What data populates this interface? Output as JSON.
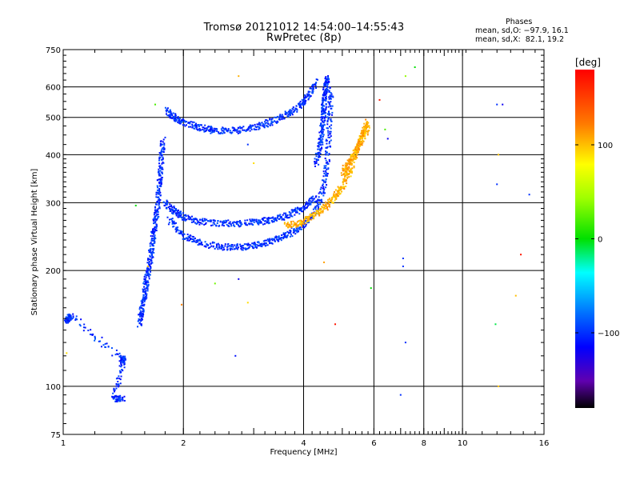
{
  "chart_data": {
    "type": "scatter",
    "title": "Tromsø 20121012 14:54:00–14:55:43",
    "subtitle": "RwPretec (8p)",
    "xlabel": "Frequency [MHz]",
    "ylabel": "Stationary phase Virtual Height [km]",
    "x_scale": "log",
    "y_scale": "log",
    "xlim": [
      1,
      16
    ],
    "ylim": [
      75,
      750
    ],
    "x_ticks": [
      "1",
      "2",
      "4",
      "6",
      "8",
      "10",
      "16"
    ],
    "x_tick_values": [
      1,
      2,
      4,
      6,
      8,
      10,
      16
    ],
    "y_ticks": [
      "75",
      "100",
      "200",
      "300",
      "400",
      "500",
      "600",
      "750"
    ],
    "y_tick_values": [
      75,
      100,
      200,
      300,
      400,
      500,
      600,
      750
    ],
    "grid": true,
    "phases_title": "Phases",
    "phase_o_text": "mean, sd,O: −97.9, 16.1",
    "phase_x_text": "mean, sd,X:  82.1, 19.2",
    "colorbar": {
      "label": "[deg]",
      "min": -180,
      "max": 180,
      "tick_labels": [
        "100",
        "0",
        "−100"
      ],
      "tick_values": [
        100,
        0,
        -100
      ]
    },
    "traces": [
      {
        "phase": -100,
        "points": [
          [
            1.55,
            145
          ],
          [
            1.58,
            160
          ],
          [
            1.6,
            175
          ],
          [
            1.62,
            190
          ],
          [
            1.65,
            210
          ],
          [
            1.67,
            235
          ],
          [
            1.7,
            260
          ],
          [
            1.72,
            290
          ],
          [
            1.74,
            330
          ],
          [
            1.76,
            380
          ],
          [
            1.78,
            440
          ]
        ]
      },
      {
        "phase": -100,
        "points": [
          [
            1.82,
            520
          ],
          [
            1.9,
            500
          ],
          [
            2.0,
            485
          ],
          [
            2.2,
            470
          ],
          [
            2.4,
            462
          ],
          [
            2.7,
            462
          ],
          [
            3.0,
            470
          ],
          [
            3.3,
            485
          ],
          [
            3.6,
            505
          ],
          [
            3.9,
            535
          ],
          [
            4.1,
            570
          ],
          [
            4.3,
            620
          ]
        ]
      },
      {
        "phase": -100,
        "points": [
          [
            1.8,
            300
          ],
          [
            1.9,
            285
          ],
          [
            2.0,
            275
          ],
          [
            2.2,
            268
          ],
          [
            2.5,
            265
          ],
          [
            2.8,
            265
          ],
          [
            3.1,
            268
          ],
          [
            3.4,
            272
          ],
          [
            3.7,
            280
          ],
          [
            4.0,
            290
          ],
          [
            4.3,
            310
          ]
        ]
      },
      {
        "phase": -100,
        "points": [
          [
            1.85,
            270
          ],
          [
            2.0,
            245
          ],
          [
            2.2,
            236
          ],
          [
            2.5,
            230
          ],
          [
            2.8,
            230
          ],
          [
            3.1,
            233
          ],
          [
            3.4,
            240
          ],
          [
            3.7,
            250
          ],
          [
            4.0,
            262
          ],
          [
            4.3,
            285
          ],
          [
            4.5,
            330
          ],
          [
            4.6,
            400
          ],
          [
            4.65,
            500
          ],
          [
            4.7,
            600
          ]
        ]
      },
      {
        "phase": -100,
        "points": [
          [
            4.3,
            380
          ],
          [
            4.4,
            420
          ],
          [
            4.45,
            470
          ],
          [
            4.5,
            520
          ],
          [
            4.5,
            560
          ],
          [
            4.55,
            610
          ],
          [
            4.6,
            630
          ]
        ]
      },
      {
        "phase": 105,
        "points": [
          [
            3.6,
            262
          ],
          [
            3.9,
            265
          ],
          [
            4.2,
            275
          ],
          [
            4.5,
            290
          ],
          [
            4.8,
            310
          ],
          [
            5.0,
            330
          ],
          [
            5.2,
            360
          ],
          [
            5.4,
            400
          ],
          [
            5.6,
            450
          ],
          [
            5.8,
            490
          ]
        ]
      },
      {
        "phase": 105,
        "points": [
          [
            5.0,
            360
          ],
          [
            5.2,
            380
          ],
          [
            5.4,
            410
          ],
          [
            5.6,
            440
          ],
          [
            5.8,
            470
          ]
        ]
      },
      {
        "phase": -100,
        "points": [
          [
            1.02,
            148
          ],
          [
            1.03,
            150
          ],
          [
            1.05,
            152
          ],
          [
            1.4,
            118
          ],
          [
            1.42,
            117
          ],
          [
            1.34,
            93
          ],
          [
            1.42,
            93
          ]
        ]
      }
    ],
    "scattered_points": [
      {
        "x": 2.75,
        "y": 640,
        "phase": 105
      },
      {
        "x": 2.9,
        "y": 425,
        "phase": -100
      },
      {
        "x": 3.0,
        "y": 380,
        "phase": 90
      },
      {
        "x": 2.75,
        "y": 190,
        "phase": -120
      },
      {
        "x": 2.9,
        "y": 165,
        "phase": 90
      },
      {
        "x": 2.7,
        "y": 120,
        "phase": -110
      },
      {
        "x": 2.4,
        "y": 185,
        "phase": 30
      },
      {
        "x": 1.7,
        "y": 540,
        "phase": 20
      },
      {
        "x": 6.2,
        "y": 555,
        "phase": 170
      },
      {
        "x": 6.4,
        "y": 465,
        "phase": 20
      },
      {
        "x": 6.5,
        "y": 440,
        "phase": -120
      },
      {
        "x": 7.1,
        "y": 215,
        "phase": -100
      },
      {
        "x": 7.1,
        "y": 205,
        "phase": -100
      },
      {
        "x": 7.2,
        "y": 130,
        "phase": -100
      },
      {
        "x": 7.0,
        "y": 95,
        "phase": -100
      },
      {
        "x": 7.2,
        "y": 640,
        "phase": 40
      },
      {
        "x": 7.6,
        "y": 675,
        "phase": 0
      },
      {
        "x": 5.9,
        "y": 180,
        "phase": 0
      },
      {
        "x": 4.8,
        "y": 145,
        "phase": 170
      },
      {
        "x": 4.5,
        "y": 210,
        "phase": 110
      },
      {
        "x": 12.2,
        "y": 540,
        "phase": -100
      },
      {
        "x": 12.6,
        "y": 540,
        "phase": -120
      },
      {
        "x": 12.3,
        "y": 400,
        "phase": 100
      },
      {
        "x": 12.2,
        "y": 335,
        "phase": -100
      },
      {
        "x": 14.7,
        "y": 315,
        "phase": -100
      },
      {
        "x": 12.1,
        "y": 145,
        "phase": -10
      },
      {
        "x": 13.6,
        "y": 172,
        "phase": 100
      },
      {
        "x": 14.0,
        "y": 220,
        "phase": 170
      },
      {
        "x": 12.3,
        "y": 100,
        "phase": 100
      },
      {
        "x": 1.02,
        "y": 122,
        "phase": 90
      },
      {
        "x": 1.63,
        "y": 205,
        "phase": 100
      },
      {
        "x": 1.98,
        "y": 163,
        "phase": 120
      },
      {
        "x": 1.52,
        "y": 295,
        "phase": 0
      }
    ]
  }
}
